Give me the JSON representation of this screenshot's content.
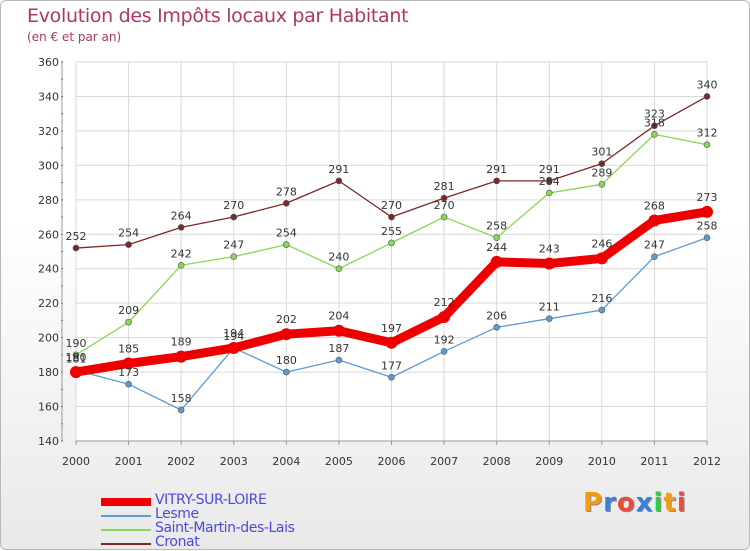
{
  "chart_data": {
    "type": "line",
    "title": "Evolution des Impôts locaux par Habitant",
    "subtitle": "(en € et par an)",
    "x": [
      "2000",
      "2001",
      "2002",
      "2003",
      "2004",
      "2005",
      "2006",
      "2007",
      "2008",
      "2009",
      "2010",
      "2011",
      "2012"
    ],
    "ylim": [
      140,
      360
    ],
    "yticks": [
      140,
      160,
      180,
      200,
      220,
      240,
      260,
      280,
      300,
      320,
      340,
      360
    ],
    "grid": true,
    "legend_position": "bottom-left",
    "series": [
      {
        "name": "VITRY-SUR-LOIRE",
        "color": "#ee0000",
        "values": [
          180,
          185,
          189,
          194,
          202,
          204,
          197,
          212,
          244,
          243,
          246,
          268,
          273
        ]
      },
      {
        "name": "Lesme",
        "color": "#5b9bd5",
        "values": [
          181,
          173,
          158,
          194,
          180,
          187,
          177,
          192,
          206,
          211,
          216,
          247,
          258
        ]
      },
      {
        "name": "Saint-Martin-des-Lais",
        "color": "#88d855",
        "values": [
          190,
          209,
          242,
          247,
          254,
          240,
          255,
          270,
          258,
          284,
          289,
          318,
          312
        ]
      },
      {
        "name": "Cronat",
        "color": "#7a2828",
        "values": [
          252,
          254,
          264,
          270,
          278,
          291,
          270,
          281,
          291,
          291,
          301,
          323,
          340
        ]
      }
    ]
  },
  "logo": {
    "letters": [
      "P",
      "r",
      "o",
      "x",
      "i",
      "t",
      "i"
    ],
    "colors": [
      "#f39c12",
      "#3a7fd9",
      "#e74c3c",
      "#3a7fd9",
      "#2ecc40",
      "#f39c12",
      "#e74c3c"
    ]
  }
}
